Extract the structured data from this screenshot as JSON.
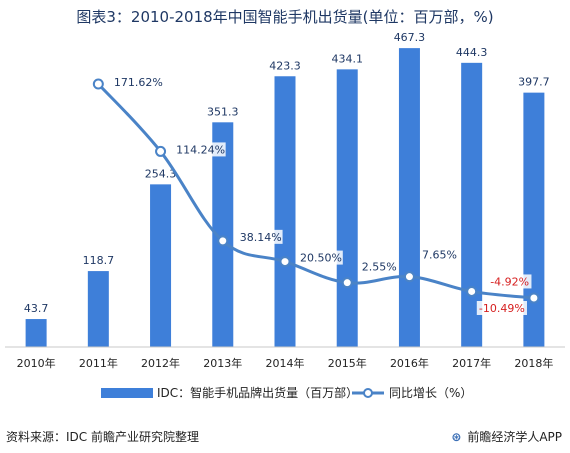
{
  "title": "图表3：2010-2018年中国智能手机出货量(单位：百万部，%)",
  "chart_data": {
    "type": "bar+line",
    "categories": [
      "2010年",
      "2011年",
      "2012年",
      "2013年",
      "2014年",
      "2015年",
      "2016年",
      "2017年",
      "2018年"
    ],
    "series": [
      {
        "name": "IDC：智能手机品牌出货量（百万部）",
        "type": "bar",
        "axis": "left",
        "values": [
          43.7,
          118.7,
          254.3,
          351.3,
          423.3,
          434.1,
          467.3,
          444.3,
          397.7
        ],
        "labels": [
          "43.7",
          "118.7",
          "254.3",
          "351.3",
          "423.3",
          "434.1",
          "467.3",
          "444.3",
          "397.7"
        ]
      },
      {
        "name": "同比增长（%）",
        "type": "line",
        "axis": "right",
        "values": [
          null,
          171.62,
          114.24,
          38.14,
          20.5,
          2.55,
          7.65,
          -4.92,
          -10.49
        ],
        "labels": [
          "",
          "171.62%",
          "114.24%",
          "38.14%",
          "20.50%",
          "2.55%",
          "7.65%",
          "-4.92%",
          "-10.49%"
        ]
      }
    ],
    "grid": false,
    "legend_position": "bottom",
    "colors": {
      "bar": "#3e7fd9",
      "line": "#4a83c7",
      "negative_label": "#d61f1f",
      "label": "#1f3864"
    }
  },
  "footer": {
    "source": "资料来源：IDC 前瞻产业研究院整理",
    "brand_icon": "qianzhan-logo-icon",
    "brand": "前瞻经济学人APP"
  }
}
